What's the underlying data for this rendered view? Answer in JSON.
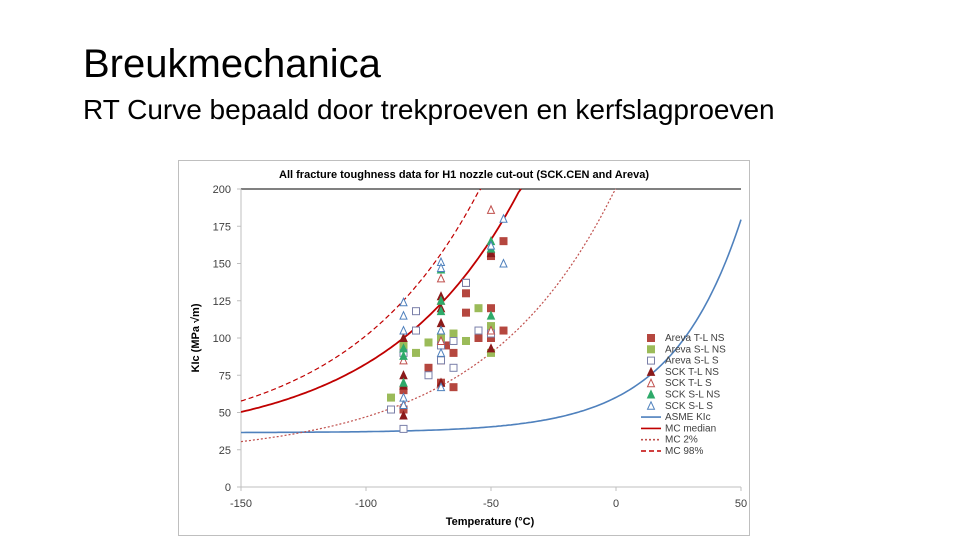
{
  "slide": {
    "title": "Breukmechanica",
    "subtitle": "RT Curve bepaald door trekproeven en kerfslagproeven"
  },
  "chart_data": {
    "type": "scatter",
    "title": "All fracture toughness data for H1 nozzle cut-out (SCK.CEN and Areva)",
    "xlabel": "Temperature (°C)",
    "ylabel": "KIc (MPa √m)",
    "xlim": [
      -150,
      50
    ],
    "ylim": [
      0,
      200
    ],
    "xticks": [
      -150,
      -100,
      -50,
      0,
      50
    ],
    "yticks": [
      0,
      25,
      50,
      75,
      100,
      125,
      150,
      175,
      200
    ],
    "grid": "horizontal top line only",
    "legend_position": "right",
    "series": [
      {
        "name": "Areva T-L NS",
        "marker": "square-filled",
        "color": "#b5473f",
        "points": [
          [
            -70,
            100
          ],
          [
            -70,
            85
          ],
          [
            -68,
            95
          ],
          [
            -65,
            90
          ],
          [
            -65,
            67
          ],
          [
            -60,
            137
          ],
          [
            -60,
            130
          ],
          [
            -60,
            117
          ],
          [
            -55,
            100
          ],
          [
            -50,
            120
          ],
          [
            -50,
            100
          ],
          [
            -50,
            155
          ],
          [
            -45,
            165
          ],
          [
            -45,
            105
          ],
          [
            -70,
            70
          ],
          [
            -85,
            52
          ],
          [
            -85,
            65
          ],
          [
            -75,
            80
          ]
        ]
      },
      {
        "name": "Areva S-L NS",
        "marker": "square-filled",
        "color": "#9bbb59",
        "points": [
          [
            -90,
            60
          ],
          [
            -80,
            90
          ],
          [
            -75,
            97
          ],
          [
            -70,
            100
          ],
          [
            -65,
            103
          ],
          [
            -60,
            98
          ],
          [
            -55,
            120
          ],
          [
            -50,
            90
          ],
          [
            -50,
            108
          ],
          [
            -85,
            95
          ]
        ]
      },
      {
        "name": "Areva S-L S",
        "marker": "square-open",
        "color": "#7a7fa8",
        "points": [
          [
            -90,
            52
          ],
          [
            -85,
            39
          ],
          [
            -80,
            105
          ],
          [
            -80,
            118
          ],
          [
            -75,
            75
          ],
          [
            -70,
            95
          ],
          [
            -70,
            85
          ],
          [
            -65,
            80
          ],
          [
            -65,
            98
          ],
          [
            -60,
            137
          ],
          [
            -55,
            105
          ],
          [
            -50,
            103
          ],
          [
            -85,
            90
          ]
        ]
      },
      {
        "name": "SCK T-L NS",
        "marker": "triangle-filled",
        "color": "#8b1a1a",
        "points": [
          [
            -85,
            48
          ],
          [
            -85,
            55
          ],
          [
            -85,
            75
          ],
          [
            -85,
            100
          ],
          [
            -70,
            128
          ],
          [
            -70,
            120
          ],
          [
            -70,
            110
          ],
          [
            -70,
            70
          ],
          [
            -50,
            157
          ],
          [
            -50,
            93
          ],
          [
            -85,
            68
          ]
        ]
      },
      {
        "name": "SCK T-L S",
        "marker": "triangle-open",
        "color": "#c0504d",
        "points": [
          [
            -70,
            140
          ],
          [
            -70,
            98
          ],
          [
            -50,
            186
          ],
          [
            -50,
            105
          ],
          [
            -85,
            85
          ],
          [
            -70,
            125
          ]
        ]
      },
      {
        "name": "SCK S-L NS",
        "marker": "triangle-filled",
        "color": "#2eaa6a",
        "points": [
          [
            -85,
            70
          ],
          [
            -85,
            88
          ],
          [
            -85,
            93
          ],
          [
            -70,
            146
          ],
          [
            -70,
            125
          ],
          [
            -70,
            118
          ],
          [
            -70,
            105
          ],
          [
            -50,
            165
          ],
          [
            -50,
            160
          ],
          [
            -50,
            115
          ]
        ]
      },
      {
        "name": "SCK S-L S",
        "marker": "triangle-open",
        "color": "#4f81bd",
        "points": [
          [
            -85,
            124
          ],
          [
            -85,
            115
          ],
          [
            -85,
            105
          ],
          [
            -85,
            60
          ],
          [
            -85,
            55
          ],
          [
            -70,
            151
          ],
          [
            -70,
            147
          ],
          [
            -70,
            105
          ],
          [
            -70,
            90
          ],
          [
            -70,
            67
          ],
          [
            -45,
            180
          ],
          [
            -45,
            150
          ],
          [
            -50,
            162
          ]
        ]
      }
    ],
    "curves": [
      {
        "name": "ASME KIc",
        "style": "solid",
        "color": "#4f81bd"
      },
      {
        "name": "MC median",
        "style": "solid",
        "color": "#c00000"
      },
      {
        "name": "MC 2%",
        "style": "dotted",
        "color": "#c0504d"
      },
      {
        "name": "MC 98%",
        "style": "dashed",
        "color": "#c00000"
      }
    ]
  }
}
